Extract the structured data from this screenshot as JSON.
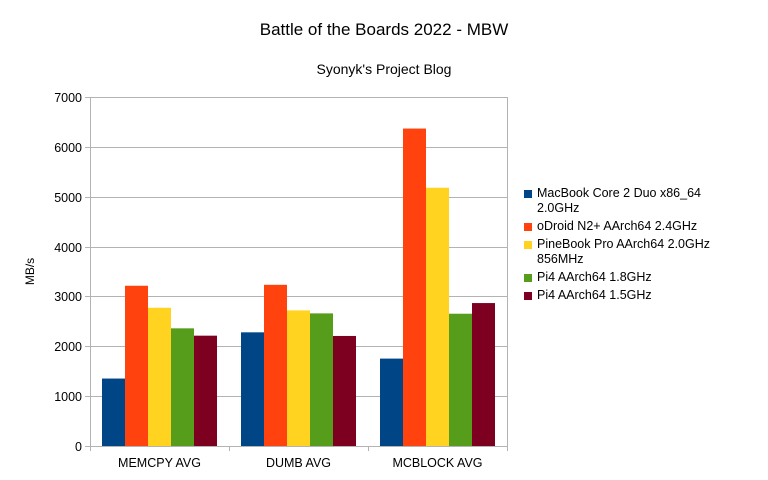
{
  "chart_data": {
    "type": "bar",
    "title": "Battle of the Boards 2022 - MBW",
    "subtitle": "Syonyk's Project Blog",
    "xlabel": "",
    "ylabel": "MB/s",
    "ylim": [
      0,
      7000
    ],
    "yticks": [
      "0",
      "1000",
      "2000",
      "3000",
      "4000",
      "5000",
      "6000",
      "7000"
    ],
    "grid": true,
    "legend_position": "right",
    "categories": [
      "MEMCPY AVG",
      "DUMB AVG",
      "MCBLOCK AVG"
    ],
    "series": [
      {
        "name": "MacBook Core 2 Duo x86_64 2.0GHz",
        "color": "#004586",
        "values": [
          1353,
          2280,
          1753
        ]
      },
      {
        "name": "oDroid N2+ AArch64 2.4GHz",
        "color": "#ff420e",
        "values": [
          3214,
          3233,
          6367
        ]
      },
      {
        "name": "PineBook Pro AArch64 2.0GHz 856MHz",
        "color": "#ffd320",
        "values": [
          2773,
          2720,
          5180
        ]
      },
      {
        "name": "Pi4 AArch64 1.8GHz",
        "color": "#579d1c",
        "values": [
          2360,
          2660,
          2653
        ]
      },
      {
        "name": "Pi4 AArch64 1.5GHz",
        "color": "#7e0021",
        "values": [
          2213,
          2207,
          2867
        ]
      }
    ]
  }
}
